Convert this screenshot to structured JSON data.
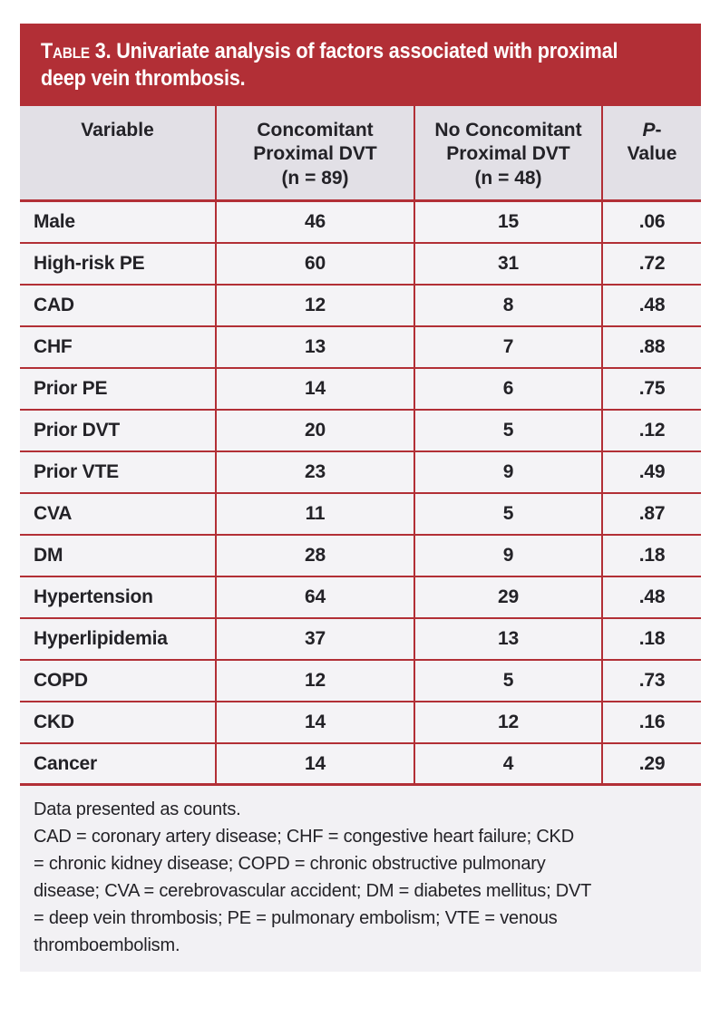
{
  "banner": {
    "label": "Table 3.",
    "title": "Univariate analysis of factors associated with proximal\ndeep vein thrombosis."
  },
  "table": {
    "headers": {
      "variable": "Variable",
      "concomitant": "Concomitant\nProximal DVT\n(n = 89)",
      "no_concomitant": "No Concomitant\nProximal DVT\n(n = 48)",
      "pvalue": {
        "italic": "P",
        "rest": "-",
        "line2": "Value"
      }
    },
    "rows": [
      {
        "variable": "Male",
        "concomitant": "46",
        "no_concomitant": "15",
        "p_value": ".06"
      },
      {
        "variable": "High-risk PE",
        "concomitant": "60",
        "no_concomitant": "31",
        "p_value": ".72"
      },
      {
        "variable": "CAD",
        "concomitant": "12",
        "no_concomitant": "8",
        "p_value": ".48"
      },
      {
        "variable": "CHF",
        "concomitant": "13",
        "no_concomitant": "7",
        "p_value": ".88"
      },
      {
        "variable": "Prior PE",
        "concomitant": "14",
        "no_concomitant": "6",
        "p_value": ".75"
      },
      {
        "variable": "Prior DVT",
        "concomitant": "20",
        "no_concomitant": "5",
        "p_value": ".12"
      },
      {
        "variable": "Prior VTE",
        "concomitant": "23",
        "no_concomitant": "9",
        "p_value": ".49"
      },
      {
        "variable": "CVA",
        "concomitant": "11",
        "no_concomitant": "5",
        "p_value": ".87"
      },
      {
        "variable": "DM",
        "concomitant": "28",
        "no_concomitant": "9",
        "p_value": ".18"
      },
      {
        "variable": "Hypertension",
        "concomitant": "64",
        "no_concomitant": "29",
        "p_value": ".48"
      },
      {
        "variable": "Hyperlipidemia",
        "concomitant": "37",
        "no_concomitant": "13",
        "p_value": ".18"
      },
      {
        "variable": "COPD",
        "concomitant": "12",
        "no_concomitant": "5",
        "p_value": ".73"
      },
      {
        "variable": "CKD",
        "concomitant": "14",
        "no_concomitant": "12",
        "p_value": ".16"
      },
      {
        "variable": "Cancer",
        "concomitant": "14",
        "no_concomitant": "4",
        "p_value": ".29"
      }
    ]
  },
  "footnote": {
    "line1": "Data presented as counts.",
    "abbreviations": "CAD = coronary artery disease; CHF = congestive heart failure; CKD\n= chronic kidney disease; COPD = chronic obstructive pulmonary\ndisease; CVA = cerebrovascular accident; DM = diabetes mellitus; DVT\n= deep vein thrombosis; PE = pulmonary embolism; VTE = venous\nthromboembolism.",
    "colors": {
      "accent_red": "#b22f36",
      "header_row_bg": "#e2e0e6",
      "data_row_bg": "#f4f3f6",
      "banner_text": "#ffffff",
      "body_text": "#232227"
    }
  }
}
